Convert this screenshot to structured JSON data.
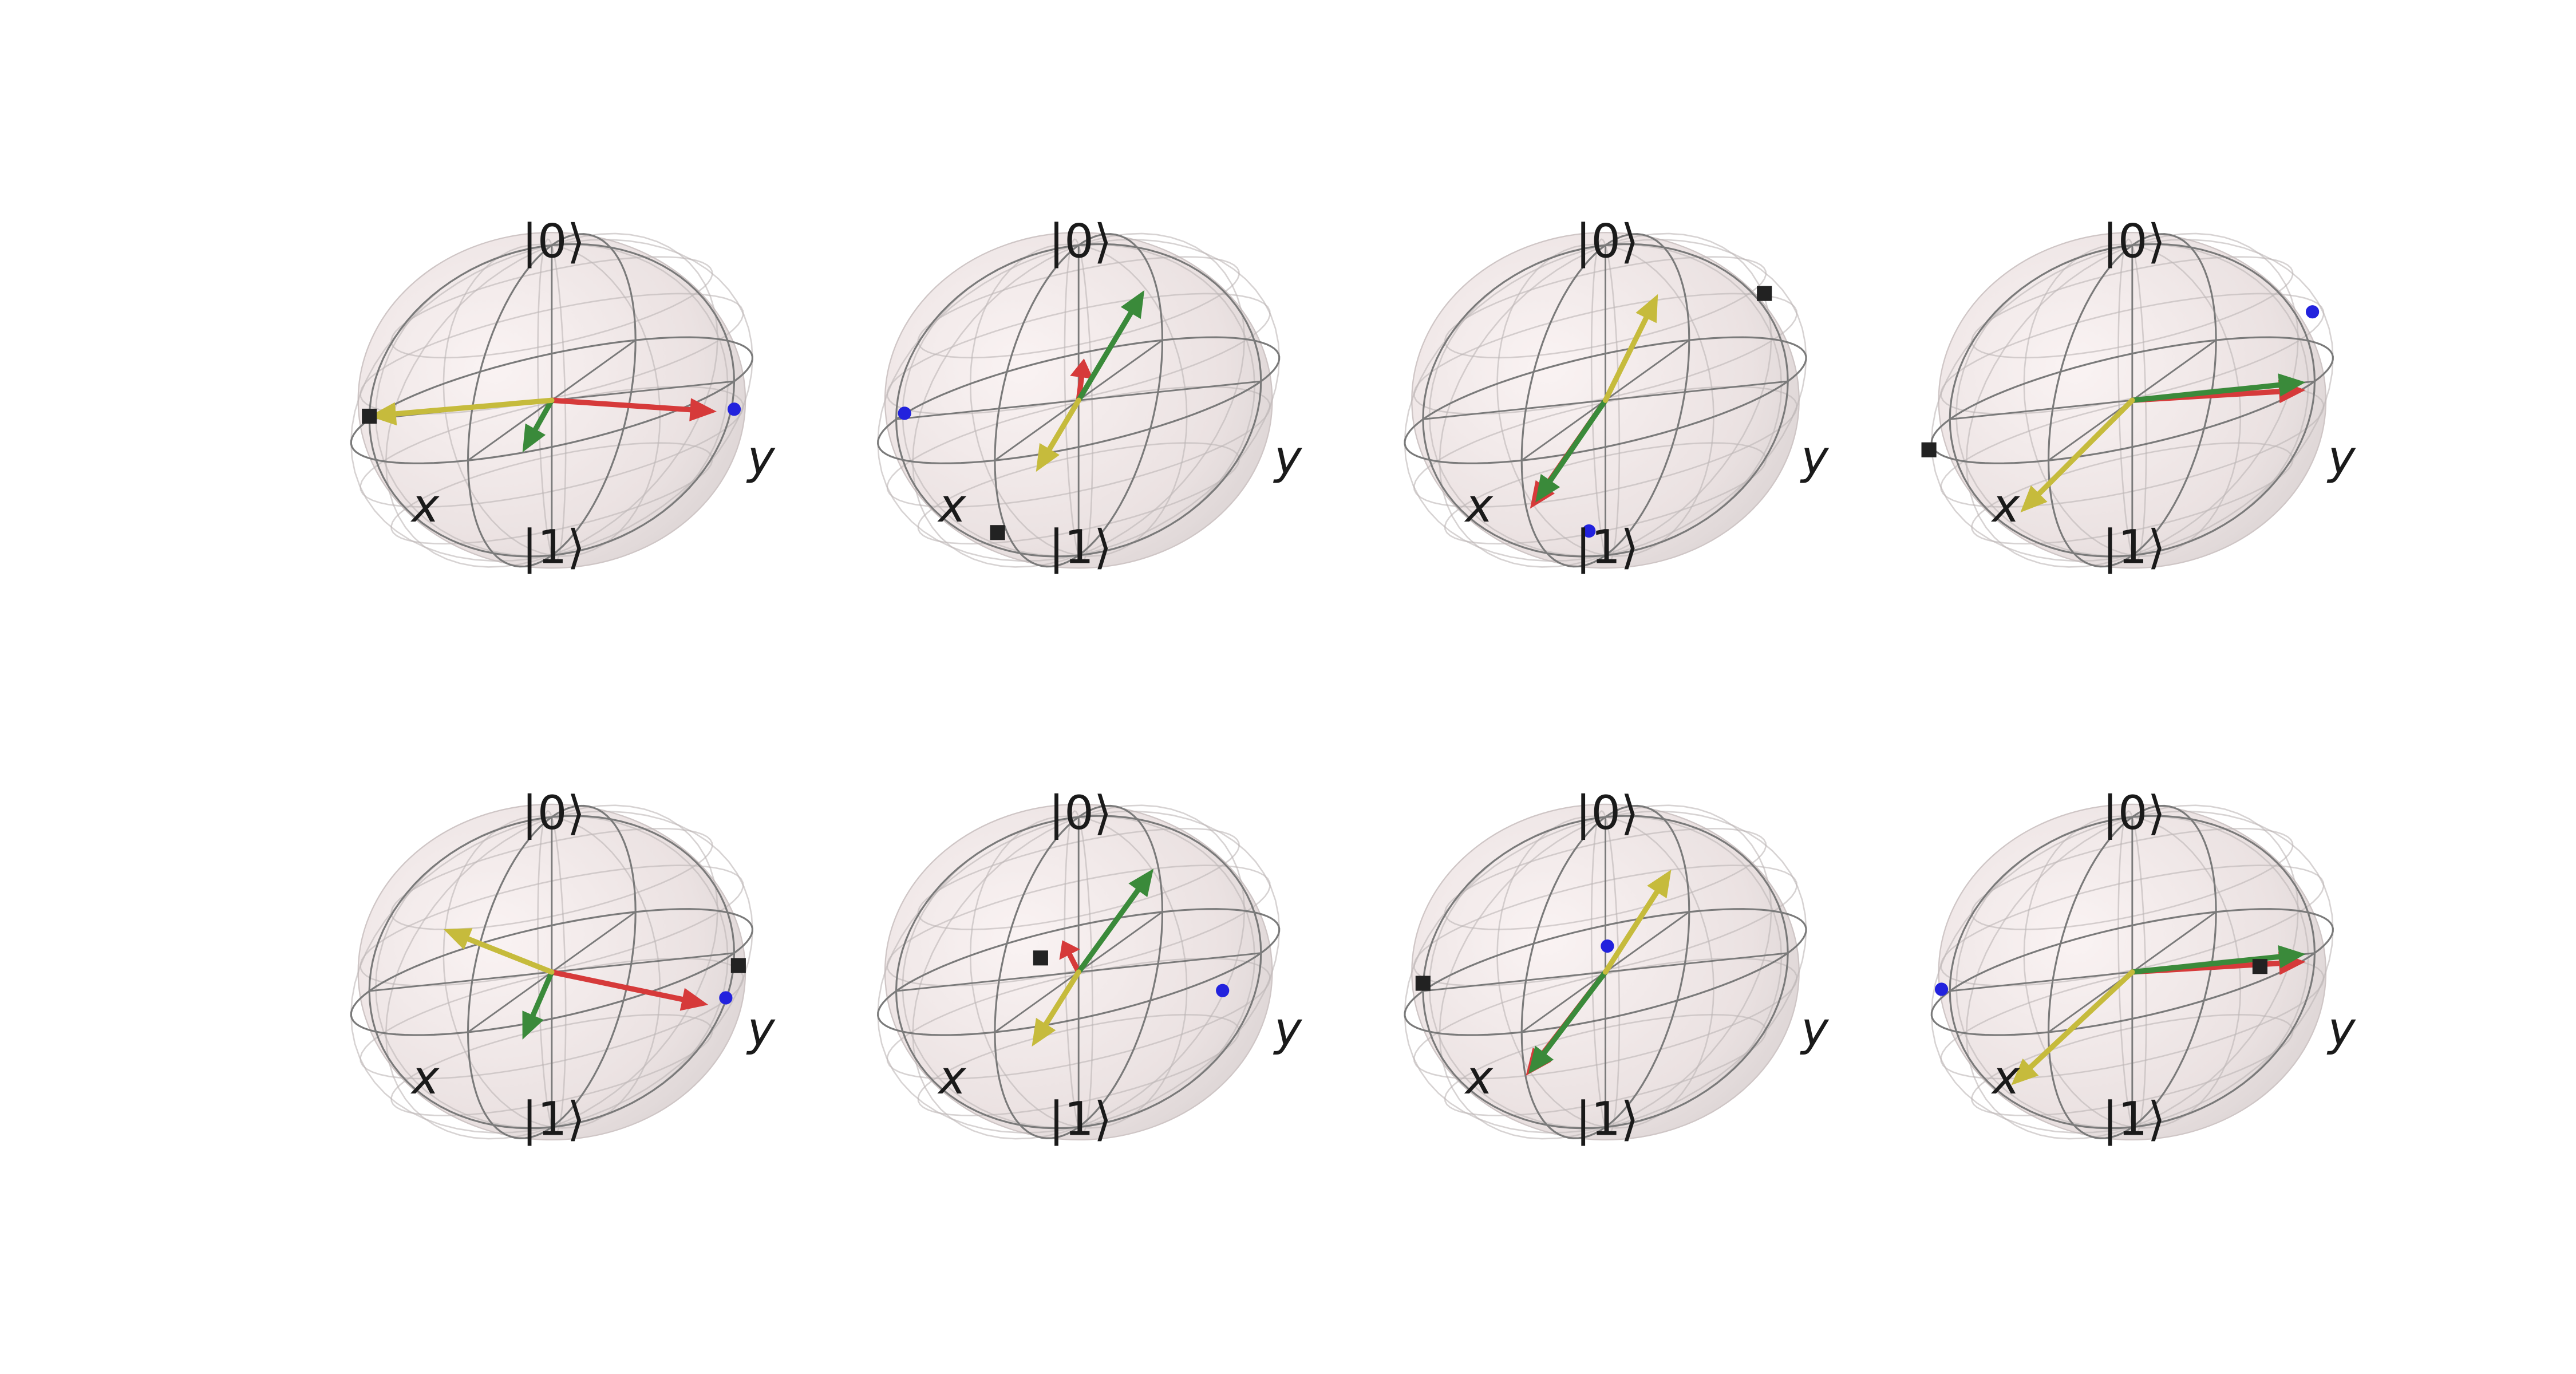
{
  "labels": {
    "zero": "|0⟩",
    "one": "|1⟩",
    "x": "x",
    "y": "y"
  },
  "colors": {
    "sphere_fill": "#f3e9e9",
    "wire": "#7a7a7a",
    "red": "#d63a3a",
    "green": "#3a8a3a",
    "yellow": "#c6bb3c",
    "point": "#2222dd",
    "square": "#222222"
  },
  "spheres": [
    {
      "vectors": [
        {
          "color": "red",
          "dir": [
            0.1,
            0.95,
            -0.15
          ]
        },
        {
          "color": "green",
          "dir": [
            0.35,
            0.0,
            -0.2
          ]
        },
        {
          "color": "yellow",
          "dir": [
            0.0,
            -1.0,
            0.02
          ]
        }
      ],
      "points": [
        {
          "kind": "dot",
          "dir": [
            0.0,
            1.0,
            -0.18
          ]
        }
      ],
      "squares": [
        {
          "dir": [
            0.0,
            -1.0,
            0.02
          ]
        }
      ]
    },
    {
      "vectors": [
        {
          "color": "red",
          "dir": [
            -0.5,
            -0.2,
            0.1
          ]
        },
        {
          "color": "green",
          "dir": [
            -0.35,
            0.2,
            0.55
          ]
        },
        {
          "color": "yellow",
          "dir": [
            0.4,
            -0.05,
            -0.3
          ]
        }
      ],
      "points": [
        {
          "kind": "dot",
          "dir": [
            -0.1,
            -1.0,
            0.0
          ]
        }
      ],
      "squares": [
        {
          "dir": [
            0.75,
            -0.1,
            -0.55
          ]
        }
      ]
    },
    {
      "vectors": [
        {
          "color": "red",
          "dir": [
            0.9,
            0.0,
            -0.35
          ]
        },
        {
          "color": "green",
          "dir": [
            0.88,
            0.02,
            -0.32
          ]
        },
        {
          "color": "yellow",
          "dir": [
            -0.3,
            0.15,
            0.55
          ]
        }
      ],
      "points": [
        {
          "kind": "dot",
          "dir": [
            0.85,
            0.3,
            -0.55
          ]
        }
      ],
      "squares": [
        {
          "dir": [
            -0.7,
            0.55,
            0.35
          ]
        }
      ]
    },
    {
      "vectors": [
        {
          "color": "red",
          "dir": [
            0.0,
            0.95,
            -0.05
          ]
        },
        {
          "color": "green",
          "dir": [
            0.0,
            0.95,
            0.0
          ]
        },
        {
          "color": "yellow",
          "dir": [
            0.9,
            -0.2,
            -0.35
          ]
        }
      ],
      "points": [
        {
          "kind": "dot",
          "dir": [
            -0.3,
            0.85,
            0.35
          ]
        }
      ],
      "squares": [
        {
          "dir": [
            0.25,
            -1.0,
            -0.1
          ]
        }
      ]
    },
    {
      "vectors": [
        {
          "color": "red",
          "dir": [
            0.2,
            0.95,
            -0.25
          ]
        },
        {
          "color": "green",
          "dir": [
            0.35,
            0.0,
            -0.3
          ]
        },
        {
          "color": "yellow",
          "dir": [
            -0.45,
            -0.8,
            0.2
          ]
        }
      ],
      "points": [
        {
          "kind": "dot",
          "dir": [
            0.1,
            1.0,
            -0.25
          ]
        }
      ],
      "squares": [
        {
          "dir": [
            -0.05,
            1.0,
            -0.1
          ]
        }
      ]
    },
    {
      "vectors": [
        {
          "color": "red",
          "dir": [
            -0.35,
            -0.25,
            0.1
          ]
        },
        {
          "color": "green",
          "dir": [
            -0.35,
            0.25,
            0.5
          ]
        },
        {
          "color": "yellow",
          "dir": [
            0.45,
            -0.05,
            -0.3
          ]
        }
      ],
      "points": [
        {
          "kind": "dot",
          "dir": [
            0.35,
            0.95,
            -0.1
          ]
        }
      ],
      "squares": [
        {
          "dir": [
            -0.2,
            -0.3,
            0.05
          ]
        }
      ]
    },
    {
      "vectors": [
        {
          "color": "red",
          "dir": [
            0.95,
            0.0,
            -0.3
          ]
        },
        {
          "color": "green",
          "dir": [
            0.92,
            0.0,
            -0.3
          ]
        },
        {
          "color": "yellow",
          "dir": [
            -0.35,
            0.2,
            0.5
          ]
        }
      ],
      "points": [
        {
          "kind": "dot",
          "dir": [
            -0.35,
            -0.15,
            0.05
          ]
        }
      ],
      "squares": [
        {
          "dir": [
            0.0,
            -1.0,
            0.05
          ]
        }
      ]
    },
    {
      "vectors": [
        {
          "color": "red",
          "dir": [
            0.0,
            0.95,
            -0.05
          ]
        },
        {
          "color": "green",
          "dir": [
            0.0,
            0.95,
            0.0
          ]
        },
        {
          "color": "yellow",
          "dir": [
            0.9,
            -0.25,
            -0.35
          ]
        }
      ],
      "points": [
        {
          "kind": "dot",
          "dir": [
            0.1,
            -1.0,
            0.05
          ]
        }
      ],
      "squares": [
        {
          "dir": [
            0.0,
            0.7,
            -0.05
          ]
        }
      ]
    }
  ]
}
